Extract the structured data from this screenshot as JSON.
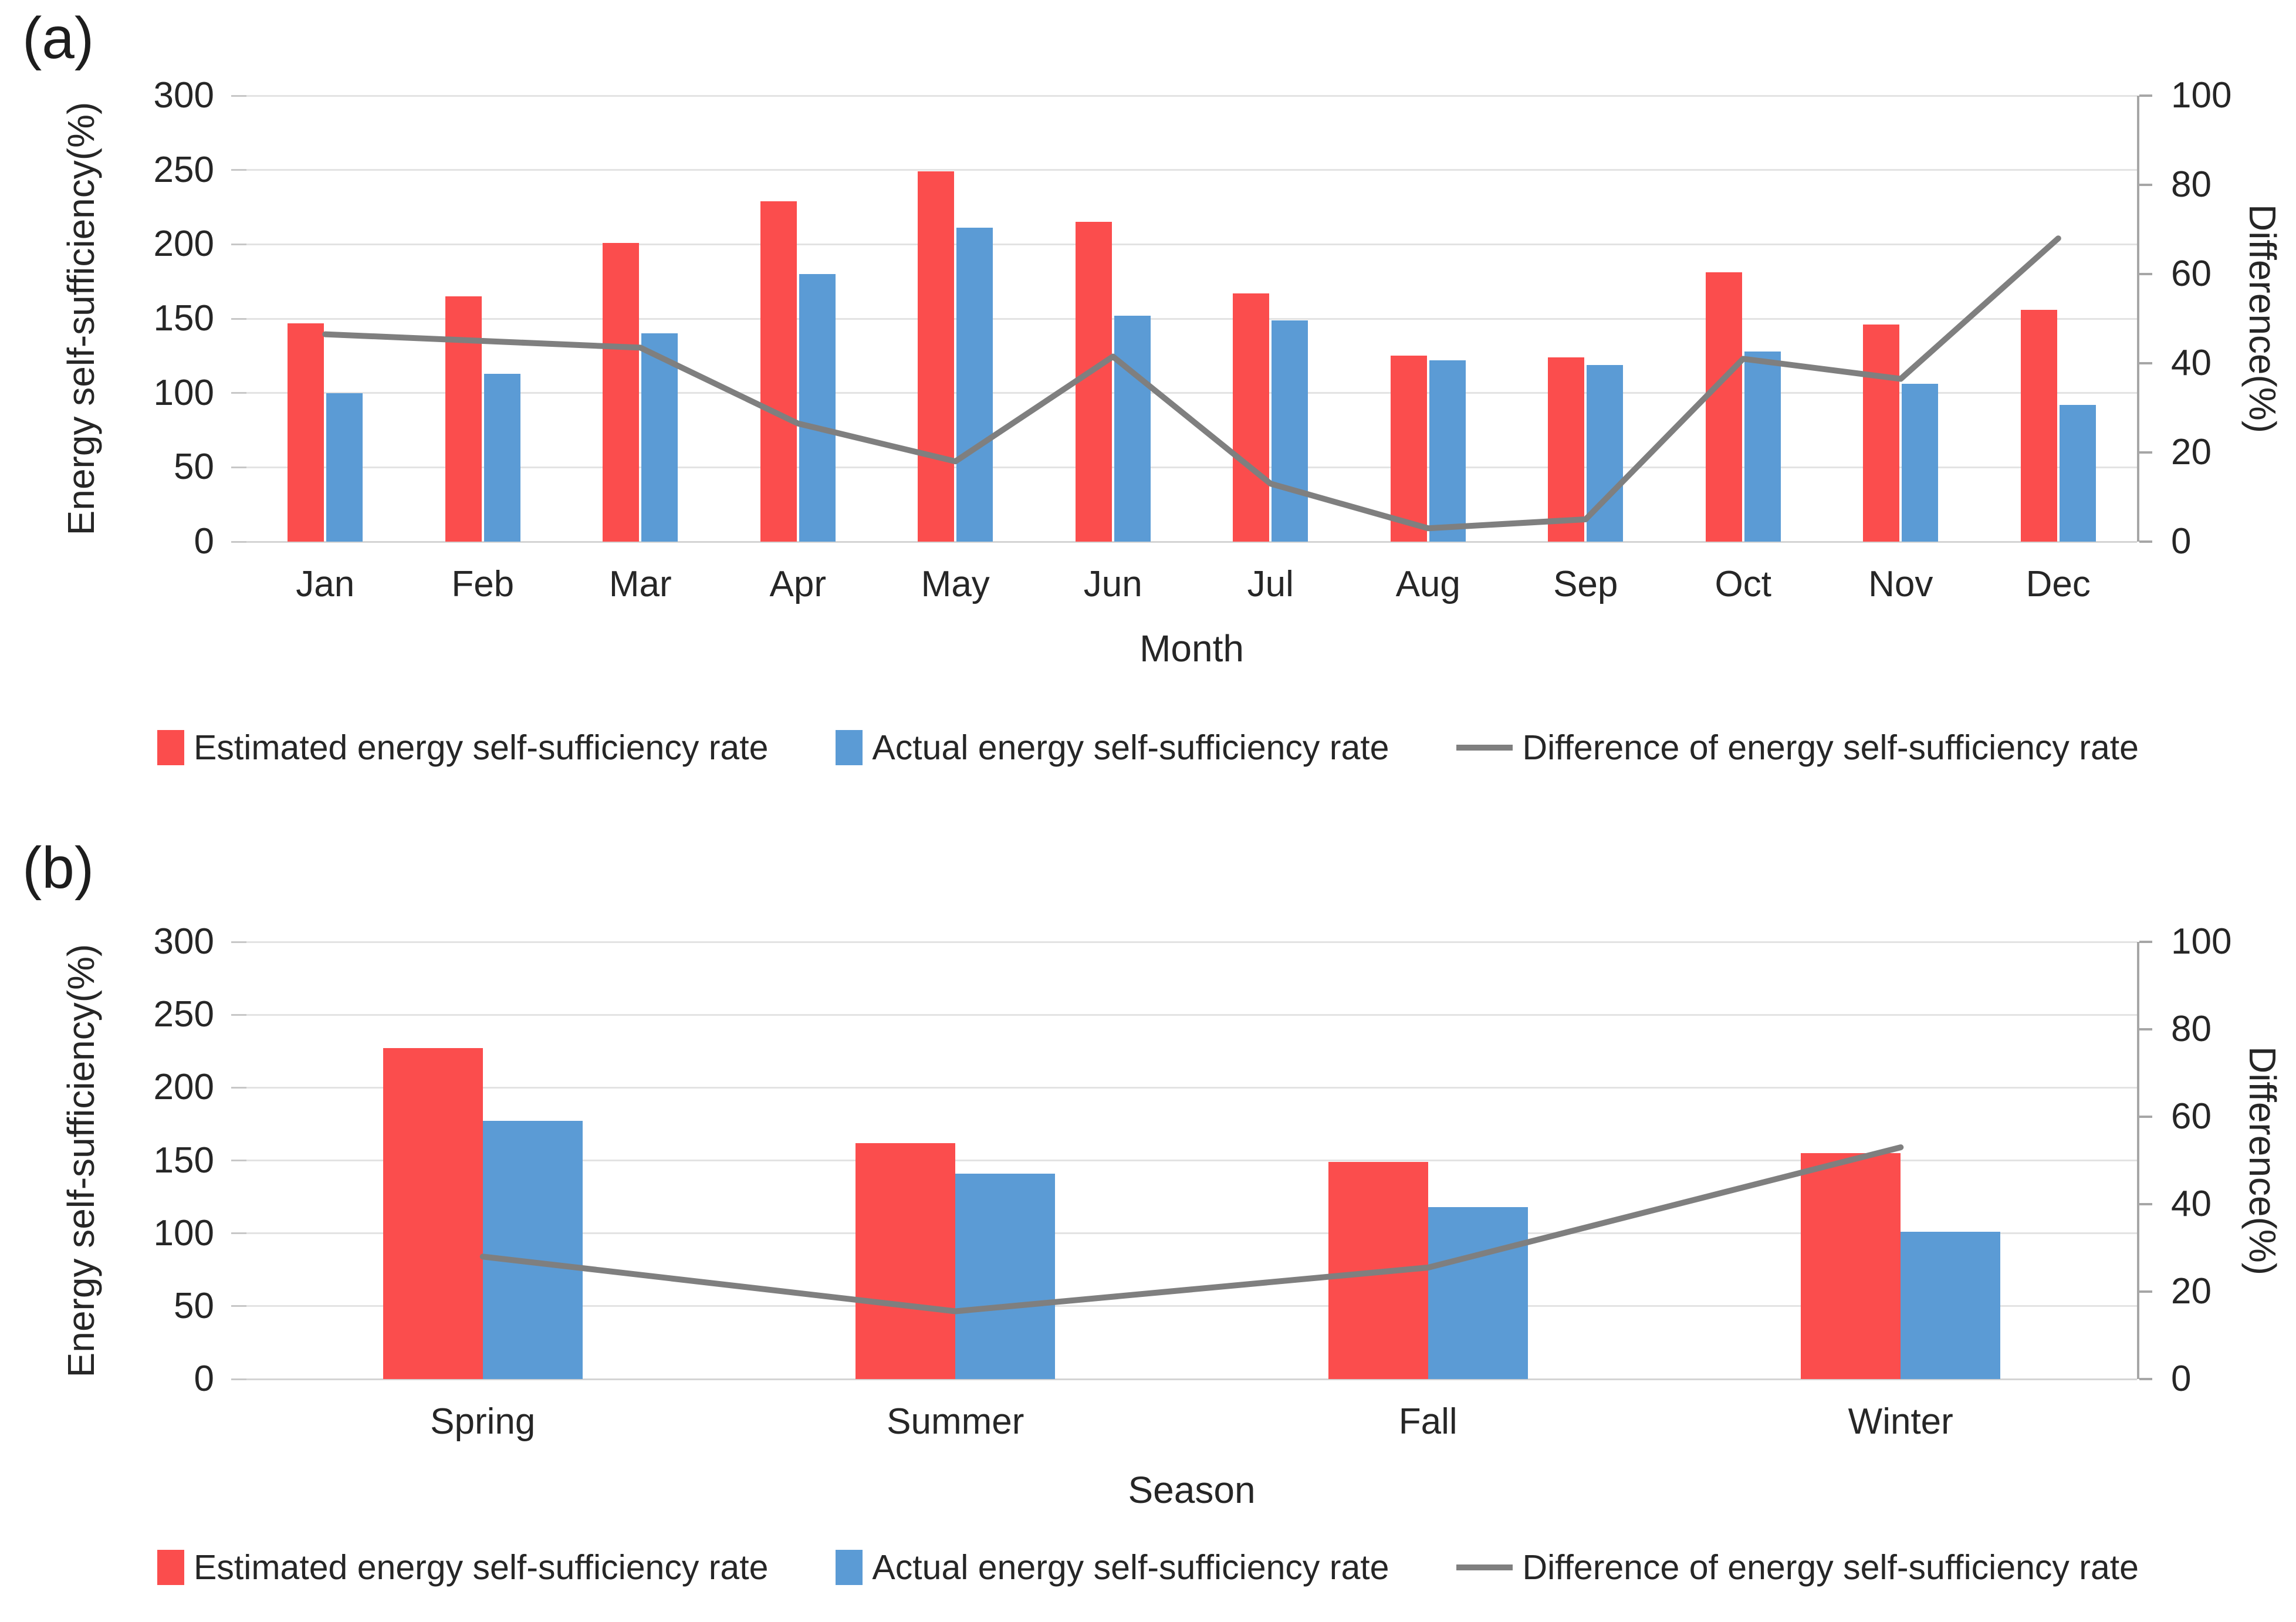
{
  "colors": {
    "estimated": "#fb4d4d",
    "actual": "#5b9bd5",
    "difference": "#7f7f7f",
    "gridline": "#e3e3e3",
    "axis_line": "#a6a6a6",
    "text": "#262626"
  },
  "legend": {
    "items": [
      {
        "label": "Estimated energy self-sufficiency rate",
        "marker": "bar",
        "color_key": "estimated"
      },
      {
        "label": "Actual energy self-sufficiency rate",
        "marker": "bar",
        "color_key": "actual"
      },
      {
        "label": "Difference of energy self-sufficiency rate",
        "marker": "line",
        "color_key": "difference"
      }
    ]
  },
  "chart_data": [
    {
      "type": "bar+line",
      "panel_label": "(a)",
      "xlabel": "Month",
      "ylabel_left": "Energy self-sufficiency(%)",
      "ylabel_right": "Difference(%)",
      "categories": [
        "Jan",
        "Feb",
        "Mar",
        "Apr",
        "May",
        "Jun",
        "Jul",
        "Aug",
        "Sep",
        "Oct",
        "Nov",
        "Dec"
      ],
      "ylim_left": [
        0,
        300
      ],
      "ylim_right": [
        0,
        100
      ],
      "yticks_left": [
        300,
        250,
        200,
        150,
        100,
        50,
        0
      ],
      "yticks_right": [
        100,
        80,
        60,
        40,
        20,
        0
      ],
      "grid": true,
      "legend_position": "bottom",
      "series": [
        {
          "name": "Estimated energy self-sufficiency rate",
          "type": "bar",
          "axis": "left",
          "color_key": "estimated",
          "values": [
            147,
            165,
            201,
            229,
            249,
            215,
            167,
            125,
            124,
            181,
            146,
            156
          ]
        },
        {
          "name": "Actual energy self-sufficiency rate",
          "type": "bar",
          "axis": "left",
          "color_key": "actual",
          "values": [
            100,
            113,
            140,
            180,
            211,
            152,
            149,
            122,
            119,
            128,
            106,
            92
          ]
        },
        {
          "name": "Difference of energy self-sufficiency rate",
          "type": "line",
          "axis": "right",
          "color_key": "difference",
          "values": [
            46.5,
            45,
            43.5,
            26.5,
            18,
            41.5,
            13,
            3,
            5,
            41,
            36.5,
            68
          ]
        }
      ]
    },
    {
      "type": "bar+line",
      "panel_label": "(b)",
      "xlabel": "Season",
      "ylabel_left": "Energy self-sufficiency(%)",
      "ylabel_right": "Difference(%)",
      "categories": [
        "Spring",
        "Summer",
        "Fall",
        "Winter"
      ],
      "ylim_left": [
        0,
        300
      ],
      "ylim_right": [
        0,
        100
      ],
      "yticks_left": [
        300,
        250,
        200,
        150,
        100,
        50,
        0
      ],
      "yticks_right": [
        100,
        80,
        60,
        40,
        20,
        0
      ],
      "grid": true,
      "legend_position": "bottom",
      "series": [
        {
          "name": "Estimated energy self-sufficiency rate",
          "type": "bar",
          "axis": "left",
          "color_key": "estimated",
          "values": [
            227,
            162,
            149,
            155
          ]
        },
        {
          "name": "Actual energy self-sufficiency rate",
          "type": "bar",
          "axis": "left",
          "color_key": "actual",
          "values": [
            177,
            141,
            118,
            101
          ]
        },
        {
          "name": "Difference of energy self-sufficiency rate",
          "type": "line",
          "axis": "right",
          "color_key": "difference",
          "values": [
            28,
            15.5,
            25.5,
            53
          ]
        }
      ]
    }
  ]
}
